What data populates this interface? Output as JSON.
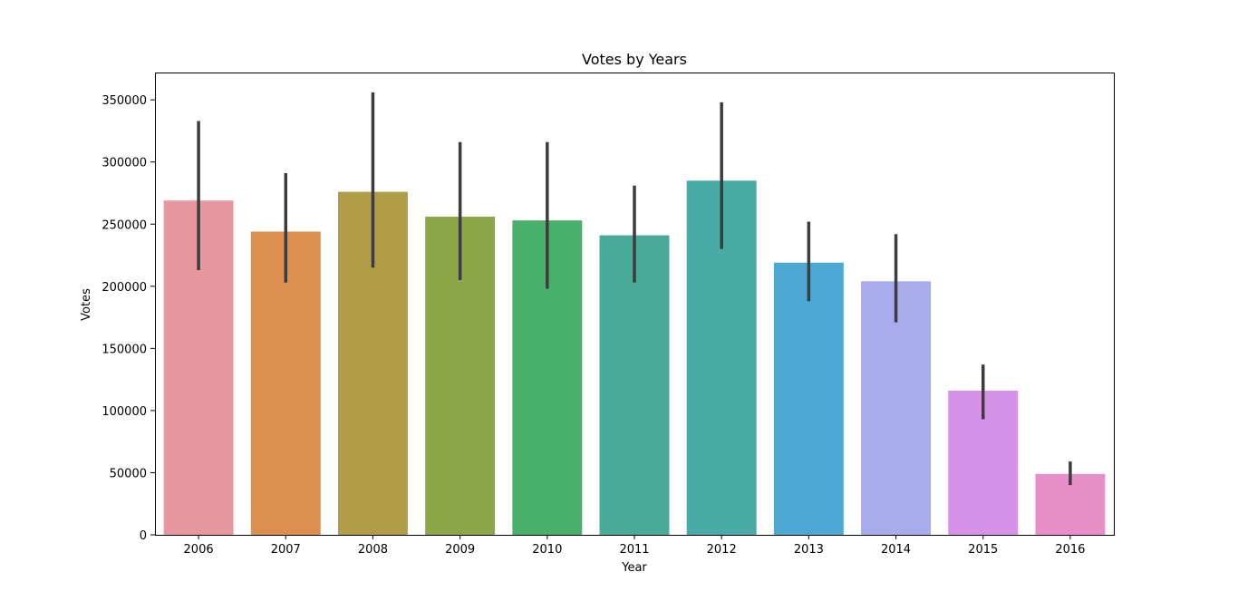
{
  "chart_data": {
    "type": "bar",
    "title": "Votes by Years",
    "xlabel": "Year",
    "ylabel": "Votes",
    "categories": [
      "2006",
      "2007",
      "2008",
      "2009",
      "2010",
      "2011",
      "2012",
      "2013",
      "2014",
      "2015",
      "2016"
    ],
    "values": [
      269000,
      244000,
      276000,
      256000,
      253000,
      241000,
      285000,
      219000,
      204000,
      116000,
      49000
    ],
    "error_low": [
      213000,
      203000,
      215000,
      205000,
      198000,
      203000,
      230000,
      188000,
      171000,
      93000,
      40000
    ],
    "error_high": [
      333000,
      291000,
      356000,
      316000,
      316000,
      281000,
      348000,
      252000,
      242000,
      137000,
      59000
    ],
    "colors": [
      "#e8969f",
      "#dd8f4f",
      "#b19c48",
      "#8da647",
      "#48b06a",
      "#48aa97",
      "#4aaaa5",
      "#4ea8d4",
      "#a8acea",
      "#d592e6",
      "#e68fc8"
    ],
    "error_color": "#3d3d3d",
    "yticks": [
      "0",
      "50000",
      "100000",
      "150000",
      "200000",
      "250000",
      "300000",
      "350000"
    ],
    "ytick_values": [
      0,
      50000,
      100000,
      150000,
      200000,
      250000,
      300000,
      350000
    ],
    "ylim": [
      0,
      372000
    ],
    "grid": false,
    "legend": "none"
  }
}
